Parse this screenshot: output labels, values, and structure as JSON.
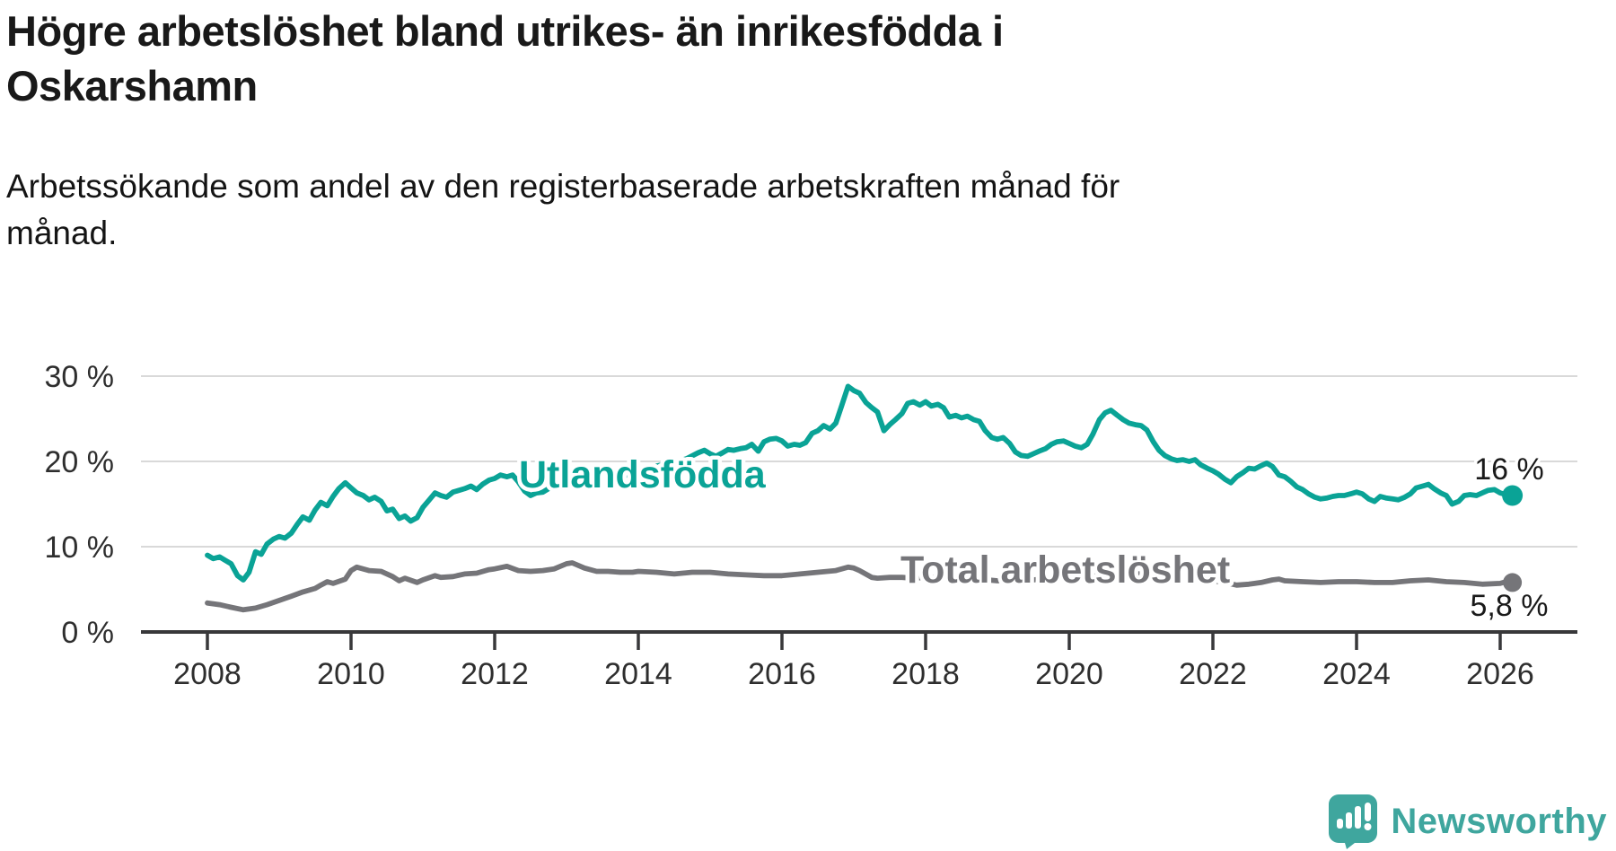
{
  "header": {
    "title": "Högre arbetslöshet bland utrikes- än inrikesfödda i\nOskarshamn",
    "subtitle": "Arbetssökande som andel av den registerbaserade arbetskraften månad för\nmånad."
  },
  "chart_data": {
    "type": "line",
    "title": "Högre arbetslöshet bland utrikes- än inrikesfödda i Oskarshamn",
    "xlabel": "",
    "ylabel": "",
    "x_axis": {
      "ticks": [
        2008,
        2010,
        2012,
        2014,
        2016,
        2018,
        2020,
        2022,
        2024,
        2026
      ],
      "labels": [
        "2008",
        "2010",
        "2012",
        "2014",
        "2016",
        "2018",
        "2020",
        "2022",
        "2024",
        "2026"
      ],
      "range": [
        2007.1,
        2027.1
      ]
    },
    "y_axis": {
      "ticks": [
        0,
        10,
        20,
        30
      ],
      "labels": [
        "0 %",
        "10 %",
        "20 %",
        "30 %"
      ],
      "range": [
        0,
        30
      ],
      "gridlines": true
    },
    "legend_position": "inline-labels",
    "series": [
      {
        "name": "Utlandsfödda",
        "color": "#0aa396",
        "end_label": "16 %",
        "x": [
          2008.0,
          2008.08,
          2008.17,
          2008.25,
          2008.33,
          2008.42,
          2008.5,
          2008.58,
          2008.67,
          2008.75,
          2008.83,
          2008.92,
          2009.0,
          2009.08,
          2009.17,
          2009.25,
          2009.33,
          2009.42,
          2009.5,
          2009.58,
          2009.67,
          2009.75,
          2009.83,
          2009.92,
          2010.0,
          2010.08,
          2010.17,
          2010.25,
          2010.33,
          2010.42,
          2010.5,
          2010.58,
          2010.67,
          2010.75,
          2010.83,
          2010.92,
          2011.0,
          2011.08,
          2011.17,
          2011.25,
          2011.33,
          2011.42,
          2011.5,
          2011.58,
          2011.67,
          2011.75,
          2011.83,
          2011.92,
          2012.0,
          2012.08,
          2012.17,
          2012.25,
          2012.33,
          2012.42,
          2012.5,
          2012.58,
          2012.67,
          2012.75,
          2012.83,
          2012.92,
          2013.0,
          2013.08,
          2013.17,
          2013.25,
          2013.33,
          2013.42,
          2013.5,
          2013.58,
          2013.67,
          2013.75,
          2013.83,
          2013.92,
          2014.0,
          2014.17,
          2014.33,
          2014.5,
          2014.67,
          2014.83,
          2014.92,
          2015.0,
          2015.08,
          2015.17,
          2015.25,
          2015.33,
          2015.42,
          2015.5,
          2015.58,
          2015.67,
          2015.75,
          2015.83,
          2015.92,
          2016.0,
          2016.08,
          2016.17,
          2016.25,
          2016.33,
          2016.42,
          2016.5,
          2016.58,
          2016.67,
          2016.75,
          2016.83,
          2016.92,
          2017.0,
          2017.08,
          2017.17,
          2017.25,
          2017.33,
          2017.42,
          2017.5,
          2017.58,
          2017.67,
          2017.75,
          2017.83,
          2017.92,
          2018.0,
          2018.08,
          2018.17,
          2018.25,
          2018.33,
          2018.42,
          2018.5,
          2018.58,
          2018.67,
          2018.75,
          2018.83,
          2018.92,
          2019.0,
          2019.08,
          2019.17,
          2019.25,
          2019.33,
          2019.42,
          2019.5,
          2019.58,
          2019.67,
          2019.75,
          2019.83,
          2019.92,
          2020.0,
          2020.08,
          2020.17,
          2020.25,
          2020.33,
          2020.42,
          2020.5,
          2020.58,
          2020.67,
          2020.75,
          2020.83,
          2020.92,
          2021.0,
          2021.08,
          2021.17,
          2021.25,
          2021.33,
          2021.42,
          2021.5,
          2021.58,
          2021.67,
          2021.75,
          2021.83,
          2021.92,
          2022.0,
          2022.08,
          2022.17,
          2022.25,
          2022.33,
          2022.42,
          2022.5,
          2022.58,
          2022.67,
          2022.75,
          2022.83,
          2022.92,
          2023.0,
          2023.08,
          2023.17,
          2023.25,
          2023.33,
          2023.42,
          2023.5,
          2023.58,
          2023.67,
          2023.75,
          2023.83,
          2023.92,
          2024.0,
          2024.08,
          2024.17,
          2024.25,
          2024.33,
          2024.42,
          2024.5,
          2024.58,
          2024.67,
          2024.75,
          2024.83,
          2024.92,
          2025.0,
          2025.08,
          2025.17,
          2025.25,
          2025.33,
          2025.42,
          2025.5,
          2025.58,
          2025.67,
          2025.75,
          2025.83,
          2025.92,
          2026.0,
          2026.08,
          2026.17
        ],
        "values": [
          9.0,
          8.6,
          8.8,
          8.4,
          8.0,
          6.6,
          6.1,
          7.0,
          9.4,
          9.1,
          10.3,
          10.9,
          11.2,
          11.0,
          11.6,
          12.6,
          13.5,
          13.1,
          14.3,
          15.2,
          14.8,
          15.9,
          16.8,
          17.5,
          16.9,
          16.3,
          16.0,
          15.5,
          15.8,
          15.3,
          14.2,
          14.4,
          13.3,
          13.6,
          13.0,
          13.4,
          14.6,
          15.4,
          16.3,
          16.0,
          15.8,
          16.4,
          16.6,
          16.8,
          17.1,
          16.7,
          17.3,
          17.8,
          18.0,
          18.4,
          18.2,
          18.4,
          17.6,
          16.5,
          16.0,
          16.3,
          16.4,
          16.8,
          17.3,
          17.6,
          18.0,
          18.3,
          17.9,
          17.6,
          17.8,
          18.0,
          17.7,
          18.1,
          18.3,
          18.0,
          18.4,
          18.7,
          19.0,
          19.3,
          19.6,
          19.9,
          20.3,
          21.0,
          21.3,
          20.9,
          20.6,
          21.0,
          21.4,
          21.3,
          21.5,
          21.6,
          22.0,
          21.2,
          22.3,
          22.6,
          22.7,
          22.4,
          21.8,
          22.0,
          21.9,
          22.2,
          23.3,
          23.6,
          24.2,
          23.8,
          24.5,
          26.5,
          28.8,
          28.3,
          28.0,
          26.9,
          26.3,
          25.8,
          23.6,
          24.3,
          24.9,
          25.6,
          26.8,
          27.0,
          26.6,
          27.0,
          26.5,
          26.7,
          26.3,
          25.2,
          25.4,
          25.1,
          25.3,
          24.9,
          24.7,
          23.6,
          22.8,
          22.6,
          22.8,
          22.1,
          21.1,
          20.7,
          20.6,
          20.9,
          21.2,
          21.5,
          22.0,
          22.3,
          22.4,
          22.1,
          21.8,
          21.6,
          22.0,
          23.2,
          24.9,
          25.7,
          26.0,
          25.4,
          24.9,
          24.5,
          24.3,
          24.2,
          23.7,
          22.3,
          21.3,
          20.7,
          20.3,
          20.1,
          20.2,
          20.0,
          20.2,
          19.6,
          19.2,
          18.9,
          18.5,
          17.9,
          17.5,
          18.2,
          18.7,
          19.2,
          19.1,
          19.5,
          19.8,
          19.4,
          18.4,
          18.2,
          17.7,
          17.0,
          16.7,
          16.2,
          15.8,
          15.6,
          15.7,
          15.9,
          16.0,
          16.0,
          16.2,
          16.4,
          16.2,
          15.6,
          15.3,
          15.9,
          15.7,
          15.6,
          15.5,
          15.8,
          16.2,
          16.9,
          17.1,
          17.3,
          16.8,
          16.3,
          16.0,
          15.0,
          15.3,
          16.0,
          16.1,
          16.0,
          16.3,
          16.6,
          16.7,
          16.3,
          16.1,
          16.0
        ]
      },
      {
        "name": "Total arbetslöshet",
        "color": "#757579",
        "end_label": "5,8 %",
        "x": [
          2008.0,
          2008.17,
          2008.33,
          2008.5,
          2008.67,
          2008.83,
          2009.0,
          2009.17,
          2009.33,
          2009.5,
          2009.58,
          2009.67,
          2009.75,
          2009.92,
          2010.0,
          2010.08,
          2010.25,
          2010.42,
          2010.58,
          2010.67,
          2010.75,
          2010.92,
          2011.0,
          2011.17,
          2011.25,
          2011.42,
          2011.58,
          2011.75,
          2011.92,
          2012.0,
          2012.17,
          2012.33,
          2012.5,
          2012.67,
          2012.83,
          2013.0,
          2013.08,
          2013.25,
          2013.42,
          2013.58,
          2013.75,
          2013.92,
          2014.0,
          2014.25,
          2014.5,
          2014.75,
          2015.0,
          2015.25,
          2015.5,
          2015.75,
          2016.0,
          2016.25,
          2016.5,
          2016.75,
          2016.92,
          2017.0,
          2017.08,
          2017.25,
          2017.33,
          2017.5,
          2017.67,
          2017.83,
          2018.0,
          2018.25,
          2018.5,
          2018.75,
          2019.0,
          2019.25,
          2019.5,
          2019.75,
          2020.0,
          2020.17,
          2020.33,
          2020.5,
          2020.67,
          2020.83,
          2021.0,
          2021.25,
          2021.5,
          2021.75,
          2022.0,
          2022.17,
          2022.33,
          2022.5,
          2022.67,
          2022.83,
          2022.92,
          2023.0,
          2023.25,
          2023.5,
          2023.75,
          2024.0,
          2024.25,
          2024.5,
          2024.75,
          2025.0,
          2025.25,
          2025.5,
          2025.75,
          2026.0,
          2026.08,
          2026.17
        ],
        "values": [
          3.4,
          3.2,
          2.9,
          2.6,
          2.8,
          3.2,
          3.7,
          4.2,
          4.7,
          5.1,
          5.5,
          5.9,
          5.7,
          6.2,
          7.2,
          7.6,
          7.2,
          7.1,
          6.5,
          6.0,
          6.3,
          5.8,
          6.1,
          6.6,
          6.4,
          6.5,
          6.8,
          6.9,
          7.3,
          7.4,
          7.7,
          7.2,
          7.1,
          7.2,
          7.4,
          8.0,
          8.1,
          7.5,
          7.1,
          7.1,
          7.0,
          7.0,
          7.1,
          7.0,
          6.8,
          7.0,
          7.0,
          6.8,
          6.7,
          6.6,
          6.6,
          6.8,
          7.0,
          7.2,
          7.6,
          7.5,
          7.2,
          6.4,
          6.3,
          6.4,
          6.4,
          6.3,
          6.4,
          6.3,
          6.3,
          6.2,
          6.0,
          6.2,
          6.1,
          6.3,
          6.2,
          6.3,
          6.7,
          7.1,
          7.0,
          6.9,
          6.8,
          6.5,
          6.3,
          6.1,
          6.0,
          5.8,
          5.5,
          5.6,
          5.8,
          6.1,
          6.2,
          6.0,
          5.9,
          5.8,
          5.9,
          5.9,
          5.8,
          5.8,
          6.0,
          6.1,
          5.9,
          5.8,
          5.6,
          5.7,
          5.9,
          5.8
        ]
      }
    ]
  },
  "footer": {
    "brand": "Newsworthy",
    "brand_color": "#3fa69e",
    "logo_icon": "speech-bubble-bar-chart-icon"
  }
}
